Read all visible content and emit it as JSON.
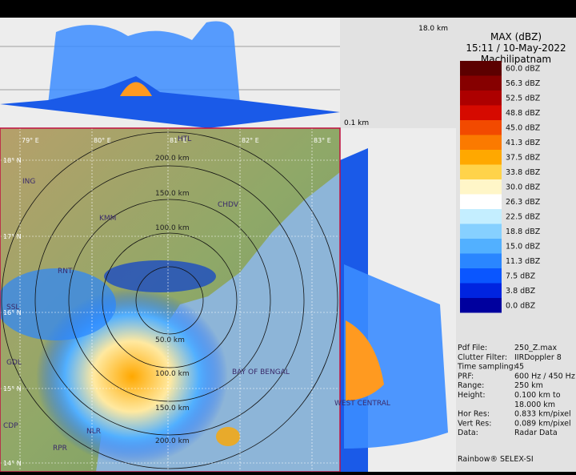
{
  "panel": {
    "top_height": "18.0 km",
    "side_height": "0.1 km"
  },
  "header": {
    "title": "MAX (dBZ)",
    "datetime": "15:11 / 10-May-2022",
    "station": "Machilipatnam"
  },
  "legend": [
    {
      "label": "60.0 dBZ",
      "color": "#5c0000"
    },
    {
      "label": "56.3 dBZ",
      "color": "#860000"
    },
    {
      "label": "52.5 dBZ",
      "color": "#ad0000"
    },
    {
      "label": "48.8 dBZ",
      "color": "#d60a00"
    },
    {
      "label": "45.0 dBZ",
      "color": "#f24a00"
    },
    {
      "label": "41.3 dBZ",
      "color": "#fb7a00"
    },
    {
      "label": "37.5 dBZ",
      "color": "#ffa800"
    },
    {
      "label": "33.8 dBZ",
      "color": "#ffd34a"
    },
    {
      "label": "30.0 dBZ",
      "color": "#fff6c8"
    },
    {
      "label": "26.3 dBZ",
      "color": "#ffffff"
    },
    {
      "label": "22.5 dBZ",
      "color": "#c4eeff"
    },
    {
      "label": "18.8 dBZ",
      "color": "#86d0ff"
    },
    {
      "label": "15.0 dBZ",
      "color": "#52b0ff"
    },
    {
      "label": "11.3 dBZ",
      "color": "#2a86ff"
    },
    {
      "label": "7.5 dBZ",
      "color": "#0a56ff"
    },
    {
      "label": "3.8 dBZ",
      "color": "#0024e0"
    },
    {
      "label": "0.0 dBZ",
      "color": "#00009e"
    }
  ],
  "info": [
    [
      "Pdf File:",
      "250_Z.max"
    ],
    [
      "Clutter Filter:",
      "IIRDoppler 8"
    ],
    [
      "Time sampling:",
      "45"
    ],
    [
      "PRF:",
      "600 Hz / 450 Hz"
    ],
    [
      "Range:",
      "250 km"
    ],
    [
      "Height:",
      "0.100 km to"
    ],
    [
      "",
      "18.000 km"
    ],
    [
      "Hor Res:",
      "0.833 km/pixel"
    ],
    [
      "Vert Res:",
      "0.089 km/pixel"
    ],
    [
      "Data:",
      "Radar Data"
    ]
  ],
  "footer": "Rainbow® SELEX-SI",
  "map": {
    "rings_north": [
      "200.0 km",
      "150.0 km",
      "100.0 km"
    ],
    "rings_south": [
      "50.0 km",
      "100.0 km",
      "150.0 km",
      "200.0 km"
    ],
    "lon": [
      "79° E",
      "80° E",
      "81° E",
      "82° E",
      "83° E"
    ],
    "lat": [
      "18° N",
      "17° N",
      "16° N",
      "15° N",
      "14° N"
    ],
    "places": [
      "ING",
      "KMM",
      "HTL",
      "CHDV",
      "RNT",
      "SSL",
      "GDL",
      "CDP",
      "RPR",
      "NLR",
      "BAY OF BENGAL",
      "WEST CENTRAL"
    ]
  }
}
